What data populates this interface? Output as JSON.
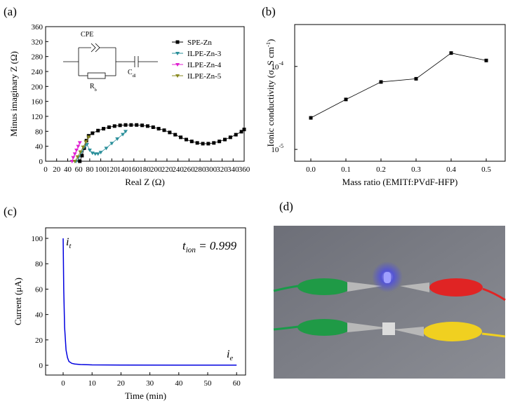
{
  "chart_data": [
    {
      "type": "line",
      "panel_label": "(a)",
      "x_label": "Real Z (Ω)",
      "y_label": {
        "text": "Minus imaginary Z (Ω)"
      },
      "xlim": [
        0,
        360
      ],
      "xticks": [
        0,
        20,
        40,
        60,
        80,
        100,
        120,
        140,
        160,
        180,
        200,
        220,
        240,
        260,
        280,
        300,
        320,
        340,
        360
      ],
      "ylim": [
        0,
        360
      ],
      "yticks": [
        0,
        40,
        80,
        120,
        160,
        200,
        240,
        280,
        320,
        360
      ],
      "legend": "upper right",
      "inset_labels": [
        {
          "text": "CPE"
        },
        {
          "text": "R",
          "sub": "b"
        },
        {
          "text": "C",
          "sub": "dl"
        }
      ],
      "series": [
        {
          "name": "SPE-Zn",
          "color": "#000000",
          "marker": "square",
          "x": [
            62,
            66,
            70,
            74,
            78,
            85,
            95,
            105,
            115,
            125,
            135,
            145,
            155,
            165,
            175,
            185,
            195,
            205,
            215,
            225,
            235,
            245,
            255,
            265,
            275,
            285,
            295,
            305,
            315,
            325,
            335,
            345,
            355,
            360
          ],
          "values": [
            0,
            15,
            35,
            55,
            68,
            75,
            82,
            87,
            91,
            94,
            96,
            97,
            97,
            97,
            96,
            94,
            91,
            87,
            83,
            77,
            71,
            64,
            58,
            53,
            49,
            47,
            47,
            49,
            53,
            58,
            64,
            71,
            79,
            85
          ]
        },
        {
          "name": "ILPE-Zn-3",
          "color": "#2a8f9a",
          "marker": "triangle",
          "x": [
            55,
            60,
            65,
            70,
            75,
            80,
            85,
            90,
            95,
            100,
            110,
            120,
            130,
            140,
            145
          ],
          "values": [
            0,
            12,
            25,
            38,
            45,
            30,
            22,
            20,
            20,
            24,
            35,
            48,
            60,
            72,
            80
          ]
        },
        {
          "name": "ILPE-Zn-4",
          "color": "#e020d0",
          "marker": "triangle",
          "x": [
            48,
            50,
            53,
            56,
            59,
            62
          ],
          "values": [
            0,
            10,
            20,
            30,
            40,
            50
          ]
        },
        {
          "name": "ILPE-Zn-5",
          "color": "#8a8a20",
          "marker": "triangle",
          "x": [
            53,
            58,
            63,
            68,
            73,
            78
          ],
          "values": [
            0,
            12,
            25,
            38,
            52,
            65
          ]
        }
      ]
    },
    {
      "type": "line",
      "panel_label": "(b)",
      "x_label": "Mass ratio (EMITf:PVdF-HFP)",
      "y_label": {
        "text": "Ionic conductivity (σ, S cm",
        "sup": "-1",
        "end": ")"
      },
      "xlim": [
        -0.046,
        0.554
      ],
      "xticks": [
        {
          "value": 0,
          "label": "0.0"
        },
        0.1,
        0.2,
        0.3,
        0.4,
        0.5
      ],
      "ylim": [
        7.2e-06,
        0.00032
      ],
      "ylog": true,
      "yticks": [
        {
          "value": 1e-05,
          "label": "10",
          "sup": "-5"
        },
        {
          "value": 0.0001,
          "label": "10",
          "sup": "-4"
        }
      ],
      "series": [
        {
          "color": "#000000",
          "marker": "square",
          "x": [
            0,
            0.1,
            0.2,
            0.3,
            0.4,
            0.5
          ],
          "values": [
            2.4e-05,
            4e-05,
            6.5e-05,
            7.1e-05,
            0.000145,
            0.000118
          ]
        }
      ]
    },
    {
      "type": "line",
      "panel_label": "(c)",
      "x_label": "Time (min)",
      "y_label": {
        "text": "Current (μA)"
      },
      "xlim": [
        -6.07,
        63.1
      ],
      "xticks": [
        0,
        10,
        20,
        30,
        40,
        50,
        60
      ],
      "ylim": [
        -7.7,
        108.3
      ],
      "yticks": [
        0,
        20,
        40,
        60,
        80,
        100
      ],
      "annotations": [
        {
          "text": "i",
          "sub": "t"
        },
        {
          "text": "t",
          "sub": "ion",
          "end": " = 0.999"
        },
        {
          "text": "i",
          "sub": "e"
        }
      ],
      "series": [
        {
          "color": "#0000e0",
          "x": [
            0,
            0.2,
            0.5,
            1,
            1.5,
            2,
            3,
            4,
            6,
            10,
            20,
            40,
            60
          ],
          "values": [
            100,
            60,
            30,
            12,
            6,
            3,
            1.5,
            1,
            0.6,
            0.3,
            0.2,
            0.1,
            0.1
          ]
        }
      ]
    }
  ],
  "photo_label": "(d)"
}
